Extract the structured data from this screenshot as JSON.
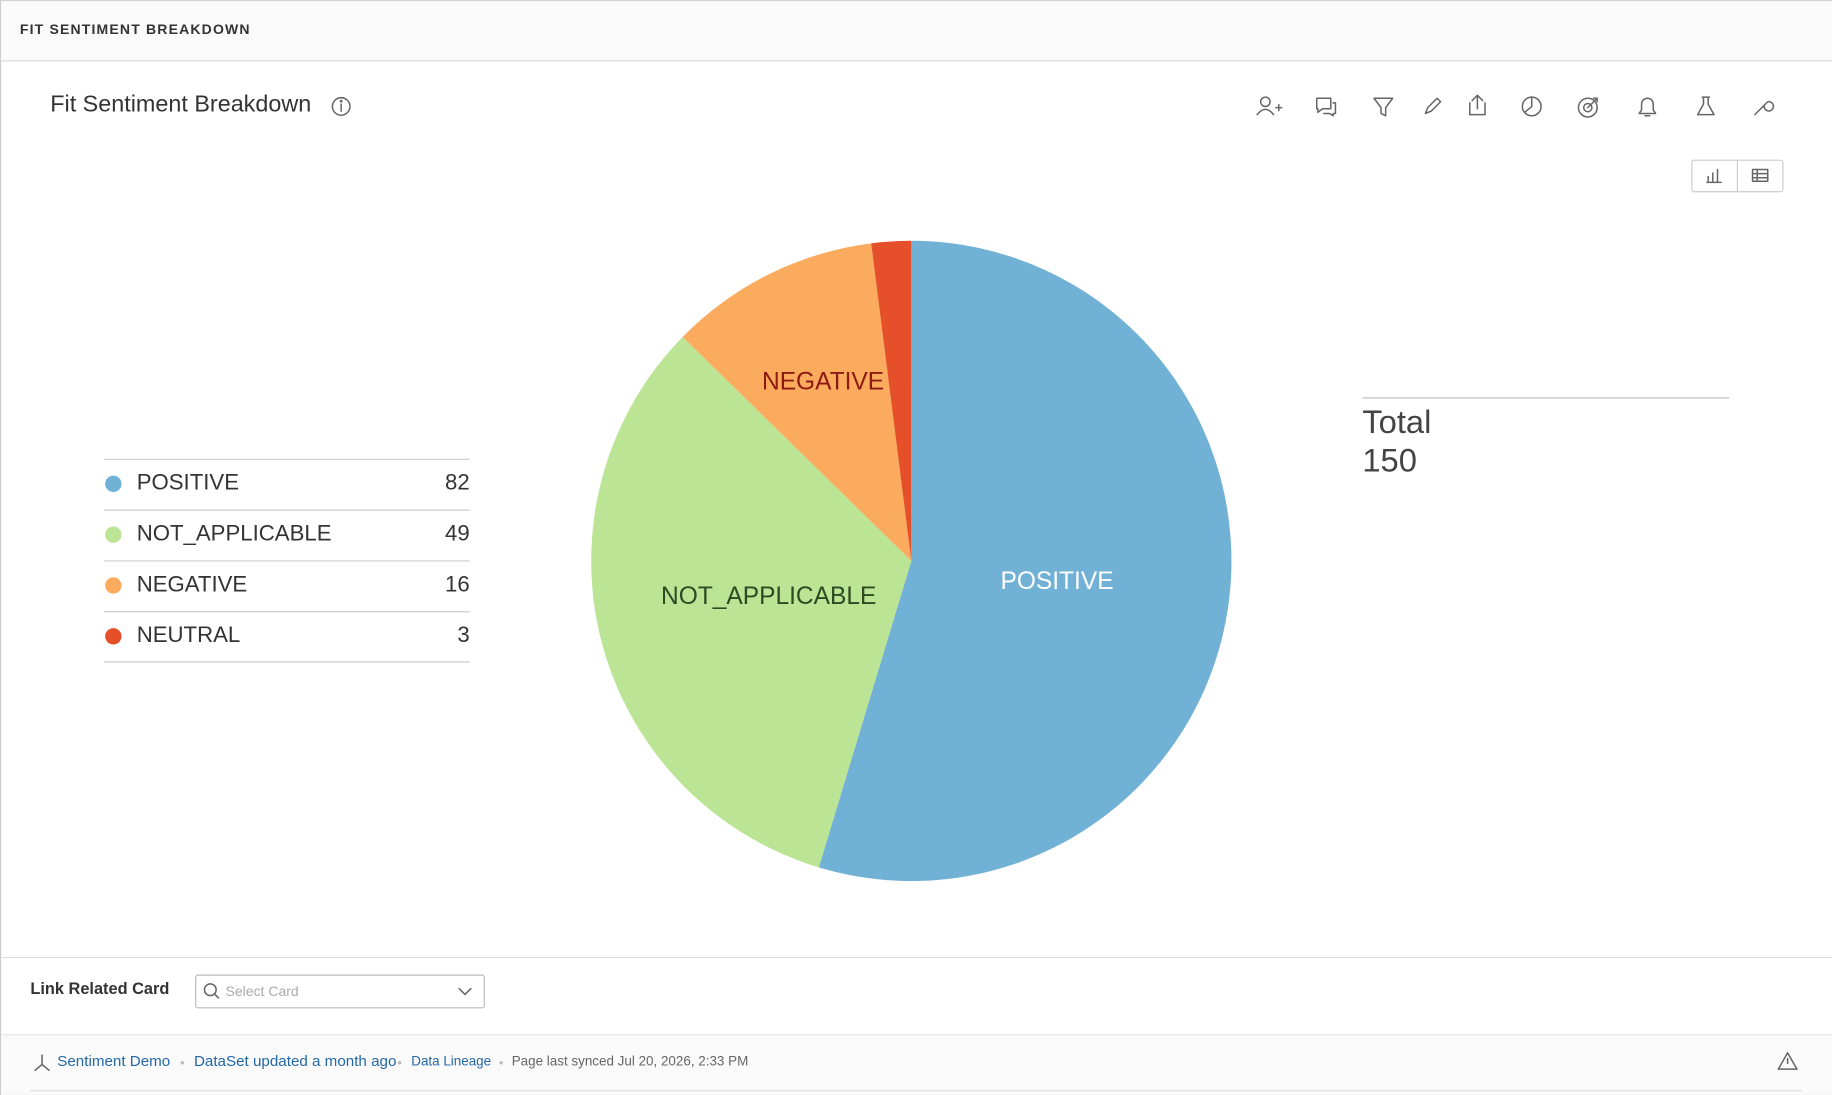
{
  "header": {
    "title": "FIT SENTIMENT BREAKDOWN"
  },
  "chart_data": {
    "type": "pie",
    "title": "Fit Sentiment Breakdown",
    "categories": [
      "POSITIVE",
      "NOT_APPLICABLE",
      "NEGATIVE",
      "NEUTRAL"
    ],
    "values": [
      82,
      49,
      16,
      3
    ],
    "colors": [
      "#72b1d6",
      "#bbe494",
      "#fbab5e",
      "#e5502b"
    ],
    "label_colors": [
      "#ffffff",
      "#2e4a22",
      "#8e1a14",
      "#ffffff"
    ],
    "total_label": "Total",
    "total": 150
  },
  "related": {
    "label": "Link Related Card",
    "placeholder": "Select Card"
  },
  "footer": {
    "dataset": "Sentiment Demo",
    "updated": "DataSet updated a month ago",
    "lineage": "Data Lineage",
    "synced": "Page last synced Jul 20, 2026, 2:33 PM"
  }
}
